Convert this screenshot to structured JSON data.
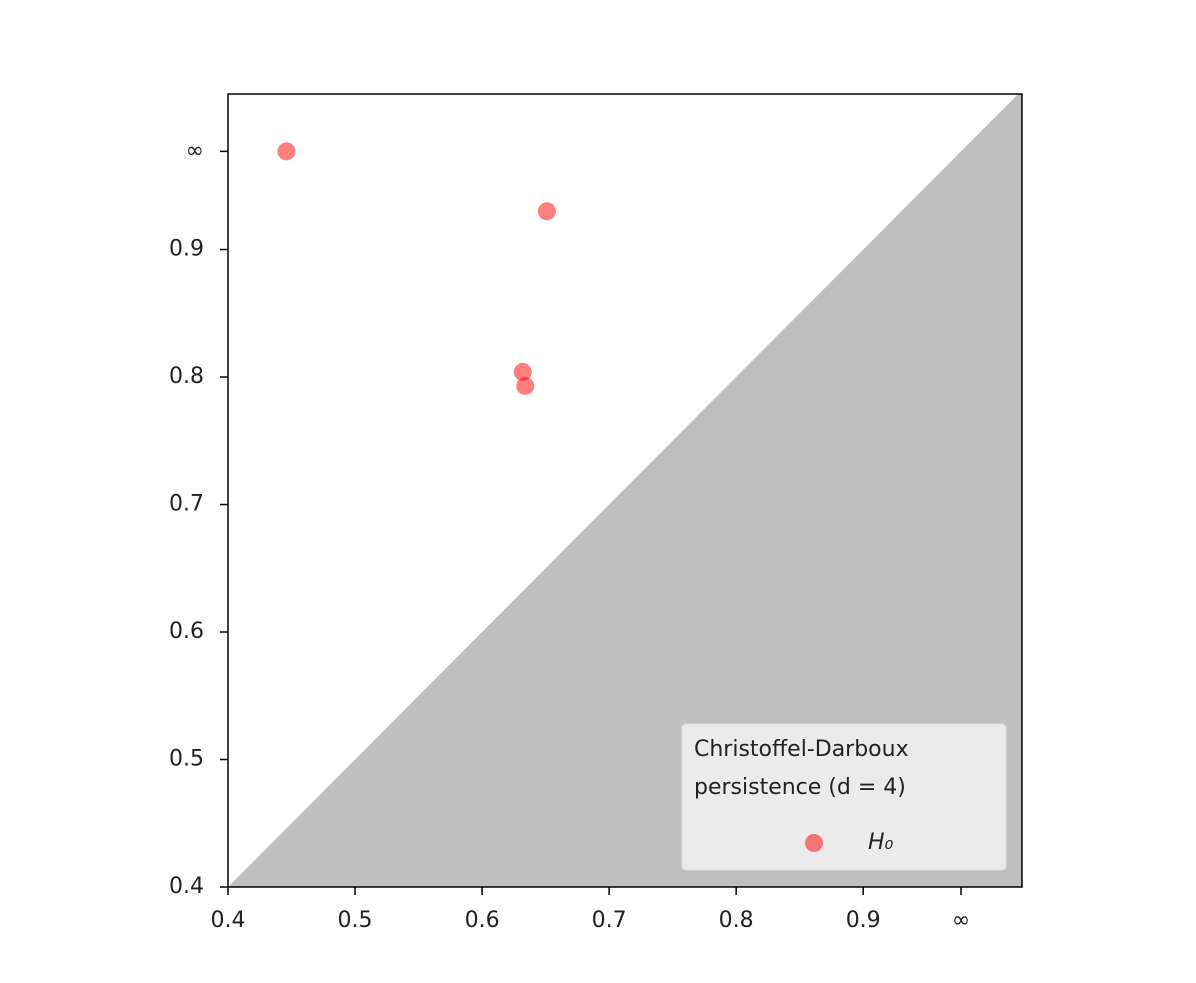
{
  "chart_data": {
    "type": "scatter",
    "series": [
      {
        "name": "H₀",
        "color": "#ff0000",
        "alpha": 0.5,
        "x": [
          0.446,
          0.651,
          0.632,
          0.634
        ],
        "values": [
          0.977,
          0.93,
          0.804,
          0.793
        ]
      }
    ],
    "xlim": [
      0.4,
      1.025
    ],
    "ylim": [
      0.4,
      1.022
    ],
    "xticks": [
      0.4,
      0.5,
      0.6,
      0.7,
      0.8,
      0.9,
      {
        "value": 0.977,
        "label": "∞"
      }
    ],
    "yticks": [
      0.4,
      0.5,
      0.6,
      0.7,
      0.8,
      0.9,
      {
        "value": 0.977,
        "label": "∞"
      }
    ],
    "diagonal_fill": "#bfbfbf",
    "legend_title": [
      "Christoffel-Darboux",
      "persistence (d = 4)"
    ],
    "legend": "lower right"
  }
}
